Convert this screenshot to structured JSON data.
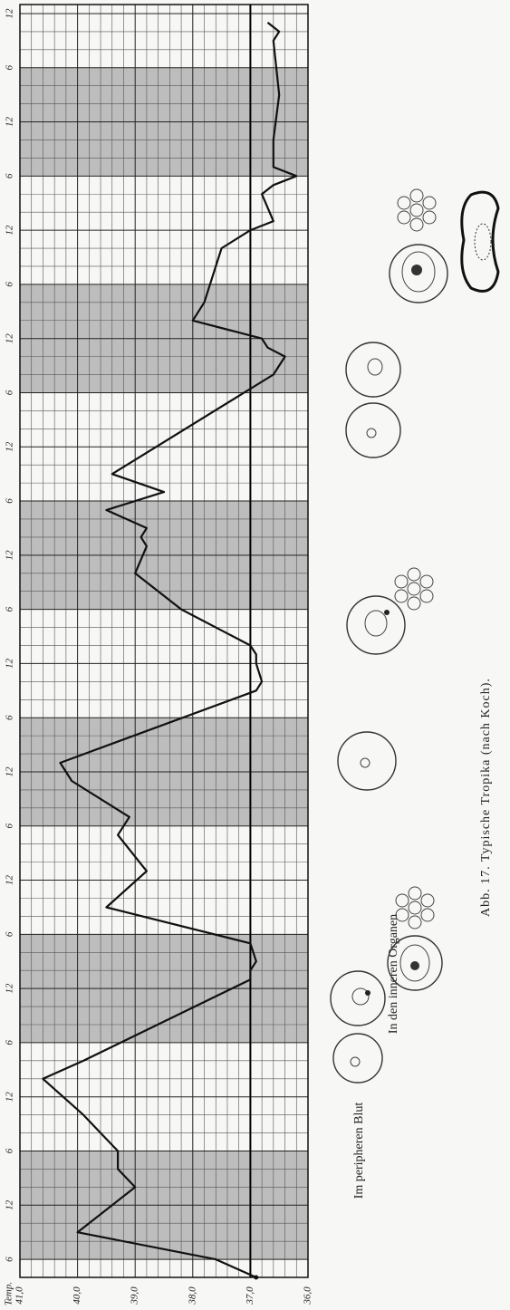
{
  "chart_data": {
    "type": "line",
    "orientation": "rotated",
    "y_axis_label": "Temp.",
    "x": [
      4,
      6,
      9,
      14,
      16,
      18,
      22,
      26,
      28,
      37,
      38,
      39,
      41,
      45,
      49,
      53,
      55,
      59,
      61,
      69,
      70,
      72,
      73,
      74,
      78,
      82,
      85,
      86,
      87,
      89,
      91,
      93,
      104,
      106,
      107,
      108,
      110,
      112,
      116,
      118,
      120,
      121,
      124,
      125,
      126,
      127,
      130,
      135,
      141,
      142,
      143
    ],
    "values": [
      36.9,
      37.6,
      40.0,
      39.0,
      39.3,
      39.3,
      39.9,
      40.6,
      39.9,
      37.0,
      37.0,
      36.9,
      37.0,
      39.5,
      38.8,
      39.3,
      39.1,
      40.1,
      40.3,
      36.9,
      36.8,
      36.9,
      36.9,
      37.0,
      38.2,
      39.0,
      38.8,
      38.9,
      38.8,
      39.5,
      38.5,
      39.4,
      36.6,
      36.4,
      36.7,
      36.8,
      38.0,
      37.8,
      37.6,
      37.5,
      37.0,
      36.6,
      36.8,
      36.6,
      36.2,
      36.6,
      36.6,
      36.5,
      36.6,
      36.5,
      36.7
    ],
    "color": "#111111",
    "xlim": [
      4,
      145
    ],
    "xticks": [
      6,
      12,
      {
        "value": 18,
        "label": "6"
      },
      {
        "value": 24,
        "label": "12"
      },
      {
        "value": 30,
        "label": "6"
      },
      {
        "value": 36,
        "label": "12"
      },
      {
        "value": 42,
        "label": "6"
      },
      {
        "value": 48,
        "label": "12"
      },
      {
        "value": 54,
        "label": "6"
      },
      {
        "value": 60,
        "label": "12"
      },
      {
        "value": 66,
        "label": "6"
      },
      {
        "value": 72,
        "label": "12"
      },
      {
        "value": 78,
        "label": "6"
      },
      {
        "value": 84,
        "label": "12"
      },
      {
        "value": 90,
        "label": "6"
      },
      {
        "value": 96,
        "label": "12"
      },
      {
        "value": 102,
        "label": "6"
      },
      {
        "value": 108,
        "label": "12"
      },
      {
        "value": 114,
        "label": "6"
      },
      {
        "value": 120,
        "label": "12"
      },
      {
        "value": 126,
        "label": "6"
      },
      {
        "value": 132,
        "label": "12"
      },
      {
        "value": 138,
        "label": "6"
      },
      {
        "value": 144,
        "label": "12"
      }
    ],
    "ylim": [
      36,
      41
    ],
    "yticks": [
      {
        "value": 41,
        "label": "41,0"
      },
      {
        "value": 40,
        "label": "40,0"
      },
      {
        "value": 39,
        "label": "39,0"
      },
      {
        "value": 38,
        "label": "38,0"
      },
      {
        "value": 37,
        "label": "37,0"
      },
      {
        "value": 36,
        "label": "36,0"
      }
    ],
    "reference_line": 37,
    "shaded_ranges": [
      [
        6,
        18
      ],
      [
        30,
        42
      ],
      [
        54,
        66
      ],
      [
        78,
        90
      ],
      [
        102,
        114
      ],
      [
        126,
        138
      ]
    ],
    "shade_color": "#a9a9a9",
    "grid": true,
    "annotations": [
      "Im peripheren Blut",
      "In den inneren Organen"
    ],
    "caption": "Abb. 17. Typische Tropika (nach Koch)."
  }
}
